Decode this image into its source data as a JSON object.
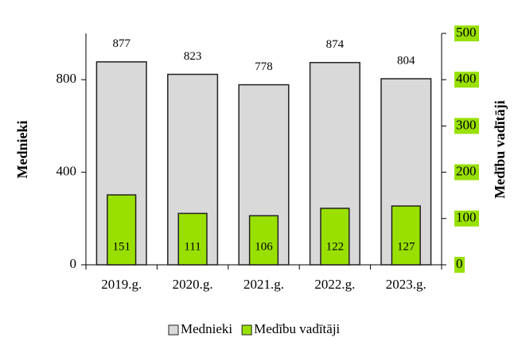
{
  "chart_data": {
    "type": "bar",
    "categories": [
      "2019.g.",
      "2020.g.",
      "2021.g.",
      "2022.g.",
      "2023.g."
    ],
    "series": [
      {
        "name": "Mednieki",
        "color": "#d9d9d9",
        "values": [
          877,
          823,
          778,
          874,
          804
        ]
      },
      {
        "name": "Medību vadītāji",
        "color": "#99e000",
        "axis": "y2",
        "values": [
          151,
          111,
          106,
          122,
          127
        ]
      }
    ],
    "ylabel": "Mednieki",
    "y2label": "Medību vadītāji",
    "ylim": [
      0,
      1000
    ],
    "yticks": [
      0,
      400,
      800
    ],
    "y2lim": [
      0,
      500
    ],
    "y2ticks": [
      0,
      100,
      200,
      300,
      400,
      500
    ],
    "legend": "bottom"
  }
}
